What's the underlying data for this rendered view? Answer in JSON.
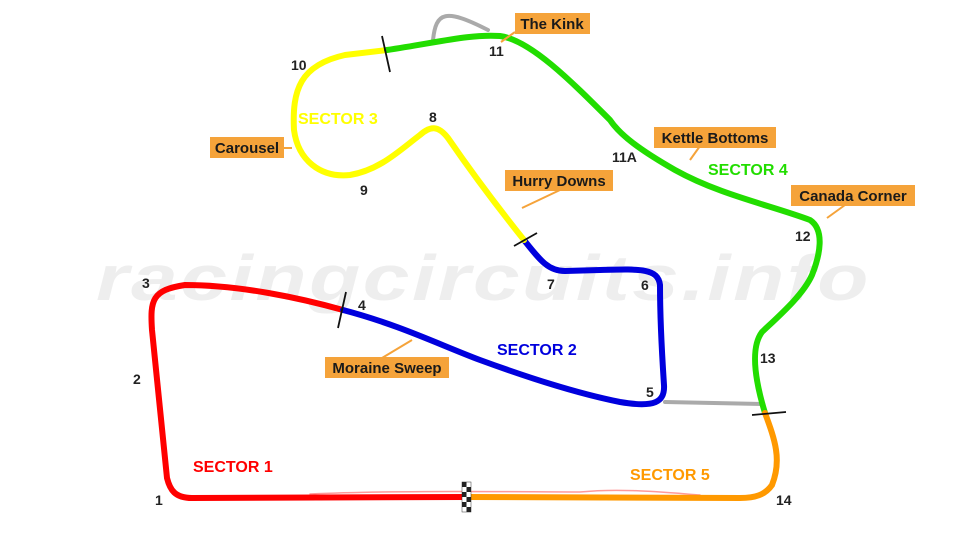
{
  "colors": {
    "sector_1": "#ff0000",
    "sector_2": "#0000dd",
    "sector_3": "#ffff00",
    "sector_4": "#22dd00",
    "sector_5": "#ff9900",
    "unused_track": "#aaaaaa",
    "callout_fill": "#f5a33a",
    "sector_marker": "#111111"
  },
  "sectors": [
    {
      "label": "SECTOR 1",
      "color": "#ff0000"
    },
    {
      "label": "SECTOR 2",
      "color": "#0000dd"
    },
    {
      "label": "SECTOR 3",
      "color": "#ffff00"
    },
    {
      "label": "SECTOR 4",
      "color": "#22dd00"
    },
    {
      "label": "SECTOR 5",
      "color": "#ff9900"
    }
  ],
  "turns": [
    "1",
    "2",
    "3",
    "4",
    "5",
    "6",
    "7",
    "8",
    "9",
    "10",
    "11",
    "11A",
    "12",
    "13",
    "14"
  ],
  "corners": [
    "The Kink",
    "Kettle Bottoms",
    "Canada Corner",
    "Hurry Downs",
    "Carousel",
    "Moraine Sweep"
  ],
  "watermark": "racingcircuits.info",
  "icons": {
    "start_finish": "checkered-flag-icon"
  }
}
